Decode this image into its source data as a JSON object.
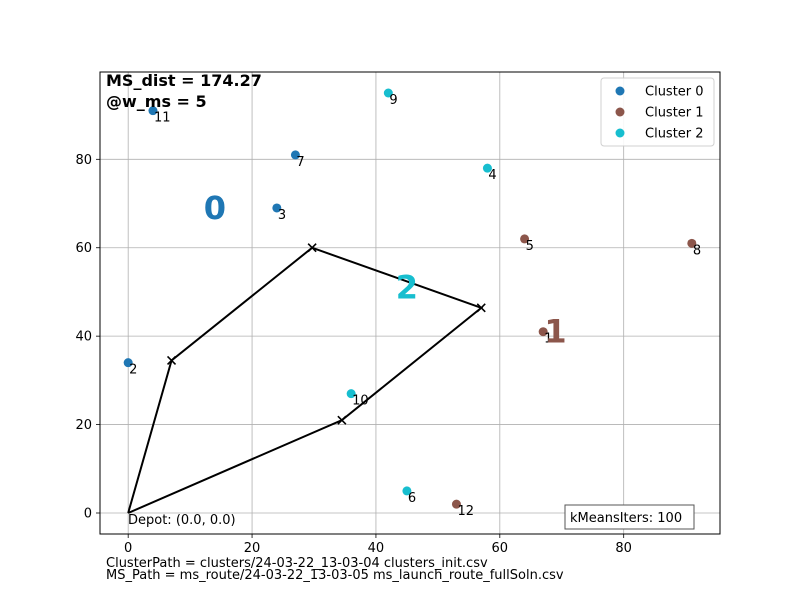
{
  "chart_data": {
    "type": "scatter",
    "xlim": [
      -4.55,
      95.55
    ],
    "ylim": [
      -4.75,
      99.75
    ],
    "x_ticks": [
      0,
      20,
      40,
      60,
      80
    ],
    "y_ticks": [
      0,
      20,
      40,
      60,
      80
    ],
    "grid": true,
    "legend_position": "top-right",
    "legend": [
      "Cluster 0",
      "Cluster 1",
      "Cluster 2"
    ],
    "colors": [
      "#1f77b4",
      "#8c564b",
      "#17becf"
    ],
    "points": [
      {
        "id": "1",
        "x": 67,
        "y": 41,
        "cluster": 1
      },
      {
        "id": "2",
        "x": 0,
        "y": 34,
        "cluster": 0
      },
      {
        "id": "3",
        "x": 24,
        "y": 69,
        "cluster": 0
      },
      {
        "id": "4",
        "x": 58,
        "y": 78,
        "cluster": 2
      },
      {
        "id": "5",
        "x": 64,
        "y": 62,
        "cluster": 1
      },
      {
        "id": "6",
        "x": 45,
        "y": 5,
        "cluster": 2
      },
      {
        "id": "7",
        "x": 27,
        "y": 81,
        "cluster": 0
      },
      {
        "id": "8",
        "x": 91,
        "y": 61,
        "cluster": 1
      },
      {
        "id": "9",
        "x": 42,
        "y": 95,
        "cluster": 2
      },
      {
        "id": "10",
        "x": 36,
        "y": 27,
        "cluster": 2
      },
      {
        "id": "11",
        "x": 4,
        "y": 91,
        "cluster": 0
      },
      {
        "id": "12",
        "x": 53,
        "y": 2,
        "cluster": 1
      }
    ],
    "centroids": [
      {
        "label": "0",
        "x": 14,
        "y": 69,
        "cluster": 0
      },
      {
        "label": "1",
        "x": 69,
        "y": 41,
        "cluster": 1
      },
      {
        "label": "2",
        "x": 45,
        "y": 51,
        "cluster": 2
      }
    ],
    "route": [
      {
        "x": 0,
        "y": 0
      },
      {
        "x": 7,
        "y": 34.5
      },
      {
        "x": 29.7,
        "y": 60
      },
      {
        "x": 57,
        "y": 46.4
      },
      {
        "x": 34.5,
        "y": 21
      },
      {
        "x": 0,
        "y": 0
      }
    ],
    "annotations": {
      "ms_dist": "MS_dist = 174.27",
      "w_ms": "@w_ms = 5",
      "depot": "Depot: (0.0, 0.0)",
      "kmeans": "kMeansIters: 100"
    }
  },
  "footer": {
    "cluster_path": "ClusterPath = clusters/24-03-22_13-03-04 clusters_init.csv",
    "ms_path": "MS_Path = ms_route/24-03-22_13-03-05 ms_launch_route_fullSoln.csv"
  }
}
